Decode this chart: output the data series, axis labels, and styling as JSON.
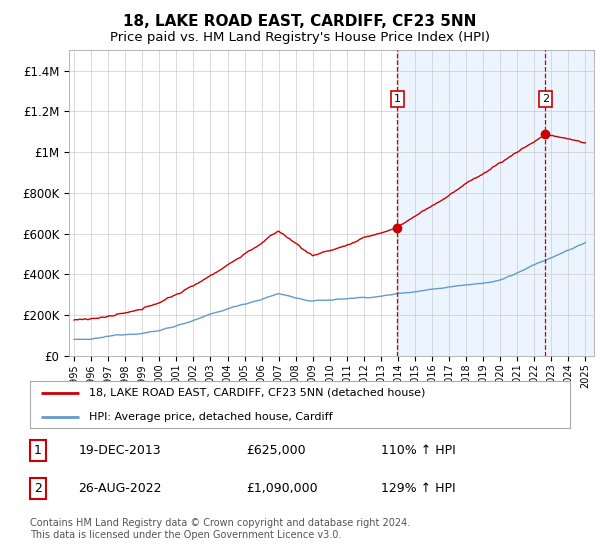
{
  "title": "18, LAKE ROAD EAST, CARDIFF, CF23 5NN",
  "subtitle": "Price paid vs. HM Land Registry's House Price Index (HPI)",
  "title_fontsize": 11,
  "subtitle_fontsize": 9.5,
  "ylim": [
    0,
    1500000
  ],
  "yticks": [
    0,
    200000,
    400000,
    600000,
    800000,
    1000000,
    1200000,
    1400000
  ],
  "ytick_labels": [
    "£0",
    "£200K",
    "£400K",
    "£600K",
    "£800K",
    "£1M",
    "£1.2M",
    "£1.4M"
  ],
  "hpi_color": "#6699cc",
  "price_color": "#cc0000",
  "vline_color": "#cc0000",
  "shade_color": "#ddeeff",
  "sale1_year": 2013.97,
  "sale1_price": 625000,
  "sale1_label": "1",
  "sale2_year": 2022.65,
  "sale2_price": 1090000,
  "sale2_label": "2",
  "legend_property": "18, LAKE ROAD EAST, CARDIFF, CF23 5NN (detached house)",
  "legend_hpi": "HPI: Average price, detached house, Cardiff",
  "note1_label": "1",
  "note1_date": "19-DEC-2013",
  "note1_price": "£625,000",
  "note1_hpi": "110% ↑ HPI",
  "note2_label": "2",
  "note2_date": "26-AUG-2022",
  "note2_price": "£1,090,000",
  "note2_hpi": "129% ↑ HPI",
  "footer": "Contains HM Land Registry data © Crown copyright and database right 2024.\nThis data is licensed under the Open Government Licence v3.0.",
  "background_color": "#ffffff",
  "grid_color": "#cccccc",
  "xlim_start": 1994.7,
  "xlim_end": 2025.5
}
